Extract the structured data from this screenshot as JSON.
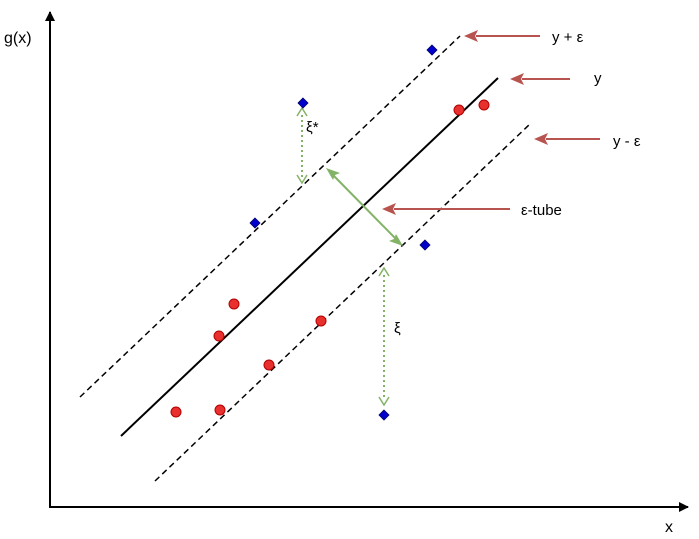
{
  "labels": {
    "y_axis": "g(x)",
    "x_axis": "x",
    "upper_line": "y + ε",
    "center_line": "y",
    "lower_line": "y - ε",
    "tube": "ε-tube",
    "xi_star": "ξ*",
    "xi": "ξ"
  },
  "colors": {
    "inside_point": "#e8312e",
    "outside_point": "#0000cc",
    "label_arrow": "#b85450",
    "slack_arrow": "#82b366",
    "line": "#000000"
  },
  "point_types": {
    "inside": "circle",
    "outside": "diamond"
  }
}
